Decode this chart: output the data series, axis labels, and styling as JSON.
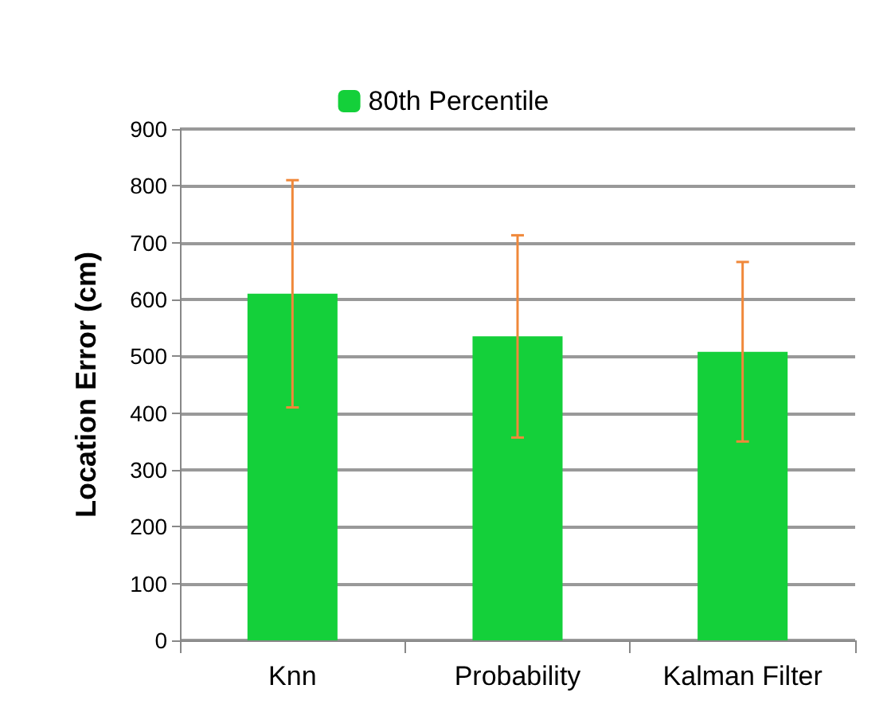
{
  "chart_data": {
    "type": "bar",
    "ylabel": "Location Error (cm)",
    "categories": [
      "Knn",
      "Probability",
      "Kalman Filter"
    ],
    "series": [
      {
        "name": "80th Percentile",
        "color": "#14d03a",
        "values": [
          610,
          535,
          508
        ],
        "errors": [
          200,
          178,
          158
        ]
      }
    ],
    "ylim": [
      0,
      900
    ],
    "yticks": [
      0,
      100,
      200,
      300,
      400,
      500,
      600,
      700,
      800,
      900
    ],
    "grid": "y",
    "legend": "top"
  }
}
